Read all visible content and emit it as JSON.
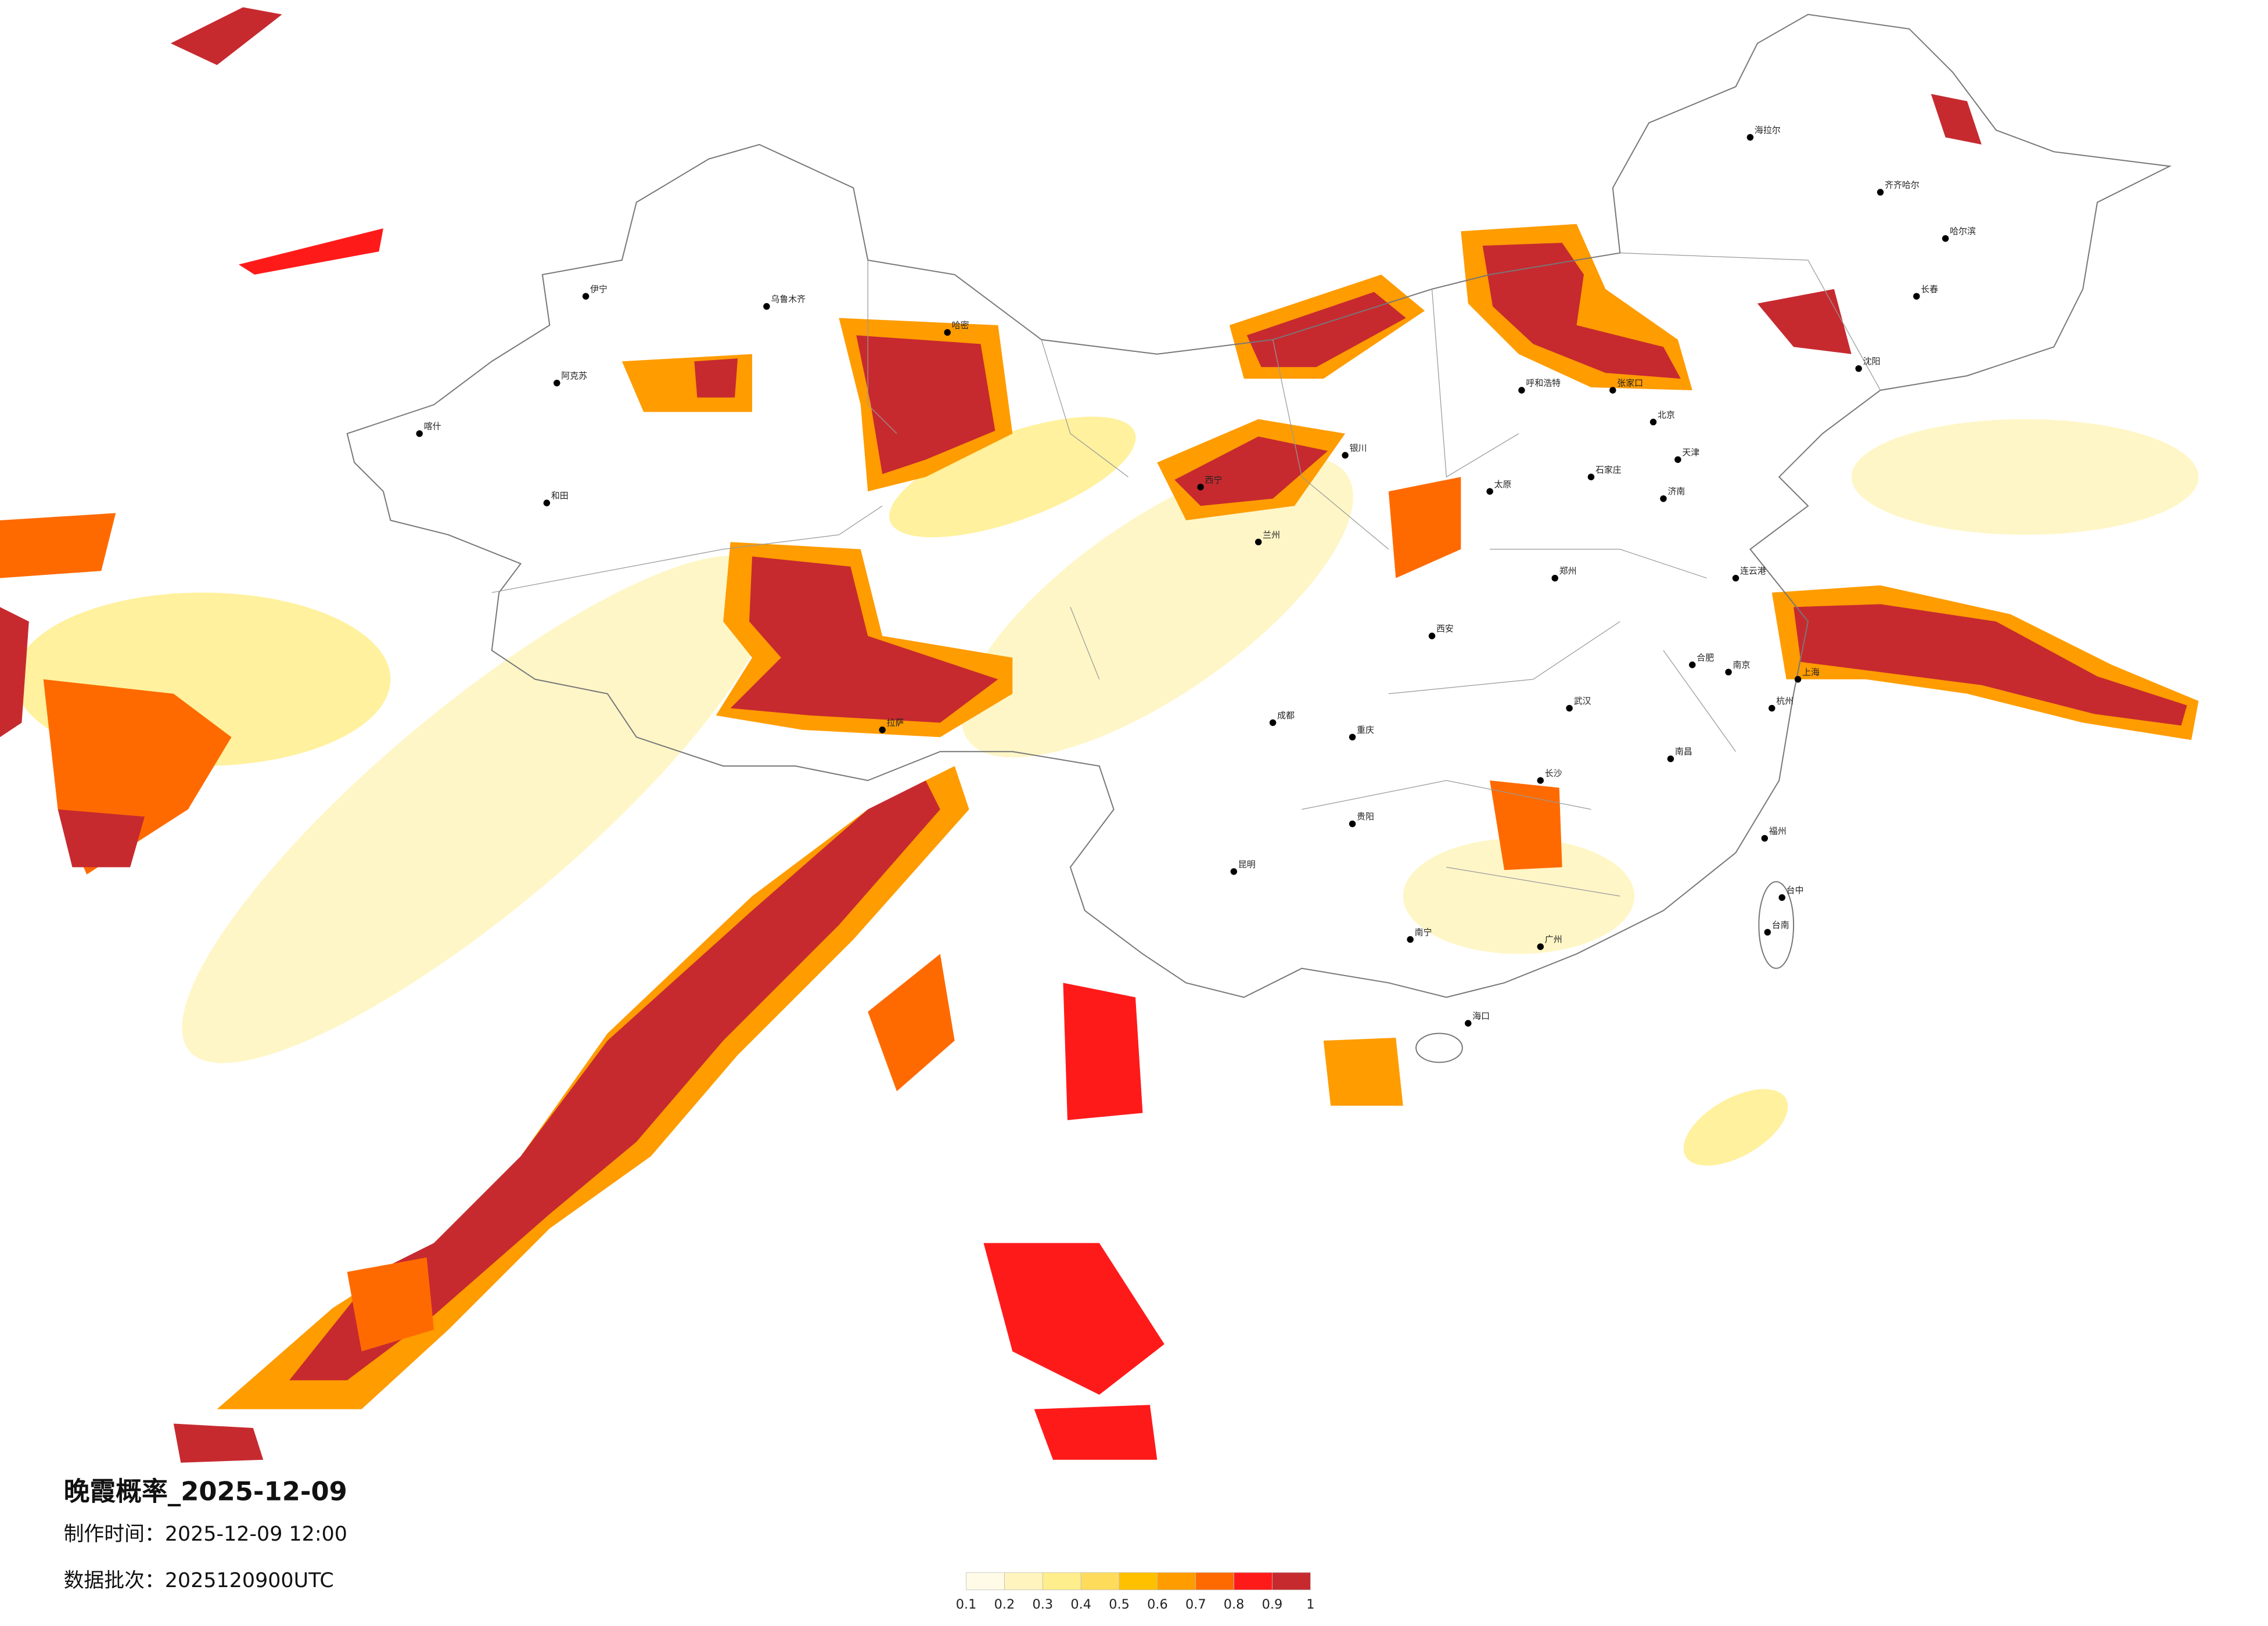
{
  "header": {
    "title": "晚霞概率_2025-12-09",
    "made": "制作时间：2025-12-09 12:00",
    "batch": "数据批次：2025120900UTC"
  },
  "legend": {
    "ticks": [
      0.1,
      0.2,
      0.3,
      0.4,
      0.5,
      0.6,
      0.7,
      0.8,
      0.9,
      1
    ],
    "colors": [
      "#fffbe6",
      "#fff4bd",
      "#ffee8c",
      "#ffdb5c",
      "#ffc000",
      "#ff9c00",
      "#ff6a00",
      "#ff1a1a",
      "#c62a2f"
    ]
  },
  "cities": [
    "北京",
    "天津",
    "上海",
    "广州",
    "武汉",
    "重庆",
    "成都",
    "西安",
    "长沙",
    "昆明",
    "贵阳",
    "南宁",
    "海口",
    "拉萨",
    "乌鲁木齐",
    "哈尔滨",
    "长春",
    "沈阳",
    "呼和浩特",
    "银川",
    "兰州",
    "西宁",
    "郑州",
    "济南",
    "南京",
    "杭州",
    "福州",
    "台中",
    "台南",
    "南昌",
    "合肥",
    "太原",
    "石家庄",
    "喀什",
    "和田",
    "伊宁",
    "阿克苏",
    "海拉尔",
    "齐齐哈尔",
    "哈密",
    "张家口",
    "连云港"
  ]
}
